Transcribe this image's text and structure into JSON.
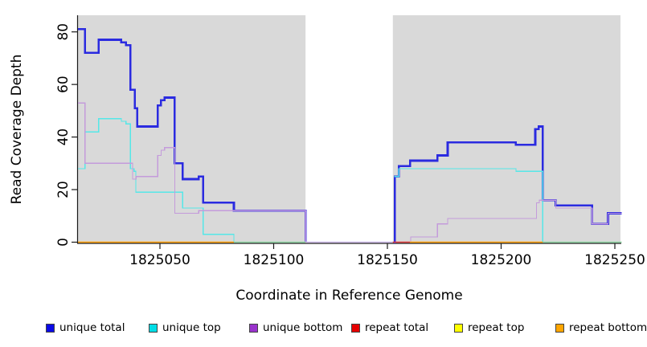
{
  "figure": {
    "background": "#ffffff",
    "panel_background": "#d9d9d9"
  },
  "x_axis": {
    "label": "Coordinate in Reference Genome",
    "ticks": [
      1825050,
      1825100,
      1825150,
      1825200,
      1825250
    ],
    "range": [
      1825014,
      1825253
    ]
  },
  "y_axis": {
    "label": "Read Coverage Depth",
    "ticks": [
      0,
      20,
      40,
      60,
      80
    ],
    "range": [
      0,
      86
    ]
  },
  "legend": {
    "items": [
      {
        "label": "unique total",
        "color": "#0a0ae6"
      },
      {
        "label": "unique top",
        "color": "#00dde6"
      },
      {
        "label": "unique bottom",
        "color": "#9932cc"
      },
      {
        "label": "repeat total",
        "color": "#e60000"
      },
      {
        "label": "repeat top",
        "color": "#ffff00"
      },
      {
        "label": "repeat bottom",
        "color": "#ffa500"
      }
    ]
  },
  "chart_data": {
    "type": "line",
    "step": true,
    "title": "",
    "xlabel": "Coordinate in Reference Genome",
    "ylabel": "Read Coverage Depth",
    "xlim": [
      1825014,
      1825253
    ],
    "ylim": [
      0,
      86
    ],
    "grid": false,
    "legend_position": "bottom",
    "no_data_gap": {
      "from": 1825114,
      "to": 1825152.4,
      "color": "#ffffff"
    },
    "series": [
      {
        "name": "unique total",
        "color": "#2b2be0",
        "line_width": 2.6,
        "segments": [
          {
            "points": [
              [
                1825014,
                81
              ],
              [
                1825017,
                72
              ],
              [
                1825023,
                77
              ],
              [
                1825033,
                76
              ],
              [
                1825035,
                75
              ],
              [
                1825037,
                58
              ],
              [
                1825039,
                51
              ],
              [
                1825040,
                44
              ],
              [
                1825049,
                52
              ],
              [
                1825050.5,
                54
              ],
              [
                1825052,
                55
              ],
              [
                1825056.5,
                30
              ],
              [
                1825060,
                24
              ],
              [
                1825067,
                25
              ],
              [
                1825069,
                15
              ],
              [
                1825082.5,
                12
              ],
              [
                1825114,
                0
              ]
            ],
            "end": 1825114
          },
          {
            "points": [
              [
                1825152.8,
                0
              ],
              [
                1825153.2,
                25
              ],
              [
                1825155,
                29
              ],
              [
                1825160,
                31
              ],
              [
                1825172,
                33
              ],
              [
                1825176.5,
                38
              ],
              [
                1825206.5,
                37
              ],
              [
                1825215,
                43
              ],
              [
                1825216.5,
                44
              ],
              [
                1825218.3,
                16
              ],
              [
                1825224,
                14
              ],
              [
                1825240,
                7
              ],
              [
                1825247,
                11
              ]
            ],
            "end": 1825253
          }
        ]
      },
      {
        "name": "unique top",
        "color": "#55e7e8",
        "line_width": 1.3,
        "segments": [
          {
            "points": [
              [
                1825014,
                28
              ],
              [
                1825017,
                42
              ],
              [
                1825023,
                47
              ],
              [
                1825033,
                46
              ],
              [
                1825035,
                45
              ],
              [
                1825037,
                28
              ],
              [
                1825038.6,
                27
              ],
              [
                1825039.4,
                19
              ],
              [
                1825060,
                13
              ],
              [
                1825069,
                3
              ],
              [
                1825082.5,
                0
              ]
            ],
            "end": 1825114
          },
          {
            "points": [
              [
                1825153,
                25
              ],
              [
                1825155,
                28
              ],
              [
                1825206.5,
                27
              ],
              [
                1825218.3,
                0
              ]
            ],
            "end": 1825218.3
          }
        ]
      },
      {
        "name": "unique bottom",
        "color": "#c49bdb",
        "line_width": 1.3,
        "segments": [
          {
            "points": [
              [
                1825014,
                53
              ],
              [
                1825017,
                30
              ],
              [
                1825038,
                24
              ],
              [
                1825039.5,
                25
              ],
              [
                1825049,
                33
              ],
              [
                1825050.5,
                35
              ],
              [
                1825052,
                36
              ],
              [
                1825056.5,
                11
              ],
              [
                1825067,
                12
              ],
              [
                1825114,
                0
              ]
            ],
            "end": 1825114
          },
          {
            "points": [
              [
                1825159.9,
                0
              ],
              [
                1825160.2,
                2
              ],
              [
                1825172,
                7
              ],
              [
                1825176.5,
                9
              ],
              [
                1825215.5,
                15
              ],
              [
                1825216.8,
                16
              ],
              [
                1825224,
                13
              ],
              [
                1825240,
                7
              ],
              [
                1825247,
                11
              ]
            ],
            "end": 1825253
          }
        ]
      },
      {
        "name": "repeat total",
        "color": "#e03939",
        "line_width": 1.4,
        "segments": [
          {
            "points": [
              [
                1825152.4,
                0
              ]
            ],
            "end": 1825159.9
          }
        ]
      },
      {
        "name": "repeat top",
        "color": "#ffff00",
        "line_width": 1.4,
        "segments": [
          {
            "points": [
              [
                1825014,
                0
              ]
            ],
            "end": 1825253
          }
        ]
      },
      {
        "name": "repeat bottom",
        "color": "#ffa500",
        "line_width": 1.4,
        "segments": [
          {
            "points": [
              [
                1825014,
                0
              ]
            ],
            "end": 1825253
          }
        ]
      }
    ],
    "baseline_zero_segments": [
      {
        "from": 1825014,
        "to": 1825082.5,
        "color": "#ff9d00"
      },
      {
        "from": 1825082.5,
        "to": 1825114,
        "color": "#8fd7a3"
      },
      {
        "from": 1825114,
        "to": 1825152.4,
        "color": "#cdb9e9"
      },
      {
        "from": 1825152.4,
        "to": 1825159.9,
        "color": "#e03939"
      },
      {
        "from": 1825159.9,
        "to": 1825218.3,
        "color": "#ff9d00"
      },
      {
        "from": 1825218.3,
        "to": 1825253,
        "color": "#8fd7a3"
      }
    ]
  }
}
